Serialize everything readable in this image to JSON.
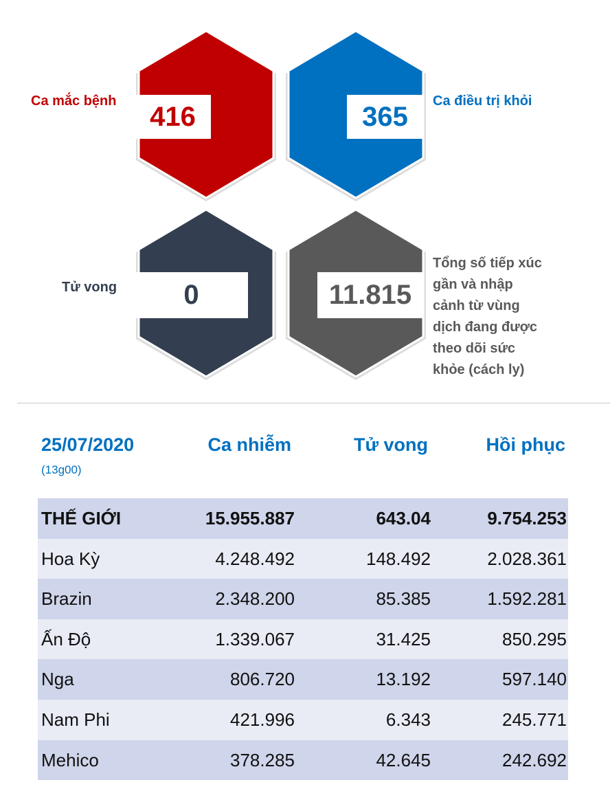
{
  "stats": {
    "cases": {
      "label": "Ca mắc bệnh",
      "value": "416",
      "color": "#c00000"
    },
    "recovered": {
      "label": "Ca điều trị khỏi",
      "value": "365",
      "color": "#0070c0"
    },
    "deaths": {
      "label": "Tử vong",
      "value": "0",
      "color": "#333f50"
    },
    "monitored": {
      "label_lines": [
        "Tổng số tiếp xúc",
        "gần và nhập",
        "cảnh từ vùng",
        "dịch đang được",
        "theo dõi sức",
        "khỏe (cách ly)"
      ],
      "value": "11.815",
      "color": "#595959"
    }
  },
  "table": {
    "date": "25/07/2020",
    "time": "(13g00)",
    "columns": [
      "Ca nhiễm",
      "Tử vong",
      "Hồi phục"
    ],
    "rows": [
      {
        "name": "THẾ GIỚI",
        "cases": "15.955.887",
        "deaths": "643.04",
        "recovered": "9.754.253"
      },
      {
        "name": "Hoa Kỳ",
        "cases": "4.248.492",
        "deaths": "148.492",
        "recovered": "2.028.361"
      },
      {
        "name": "Brazin",
        "cases": "2.348.200",
        "deaths": "85.385",
        "recovered": "1.592.281"
      },
      {
        "name": "Ấn Độ",
        "cases": "1.339.067",
        "deaths": "31.425",
        "recovered": "850.295"
      },
      {
        "name": "Nga",
        "cases": "806.720",
        "deaths": "13.192",
        "recovered": "597.140"
      },
      {
        "name": "Nam Phi",
        "cases": "421.996",
        "deaths": "6.343",
        "recovered": "245.771"
      },
      {
        "name": "Mehico",
        "cases": "378.285",
        "deaths": "42.645",
        "recovered": "242.692"
      }
    ]
  }
}
